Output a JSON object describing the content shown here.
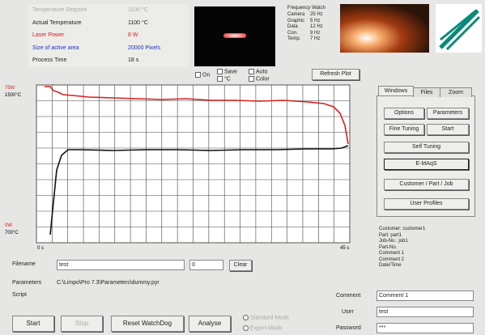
{
  "status": {
    "rows": [
      [
        "Temperature Setpoint",
        "1100 °C"
      ],
      [
        "Actual Temperature",
        "1100 °C"
      ],
      [
        "Laser Power",
        "8 W"
      ],
      [
        "Size of active area",
        "20000 Pixels"
      ],
      [
        "Process Time",
        "18 s"
      ]
    ]
  },
  "camera": {
    "checks": [
      "On",
      "Save",
      "°C",
      "Auto",
      "Color"
    ]
  },
  "frequency": {
    "title": "Frequency Watch",
    "rows": [
      [
        "Camera",
        "25 Hz"
      ],
      [
        "Graphic",
        "5 Hz"
      ],
      [
        "Data",
        "12 Hz"
      ],
      [
        "Con.",
        "9 Hz"
      ],
      [
        "Temp.",
        "7 Hz"
      ]
    ]
  },
  "refresh": "Refresh Plot",
  "plot": {
    "power_max": "75W",
    "temp_max": "1500°C",
    "power_min": "0W",
    "temp_min": "700°C",
    "time_start": "0 s",
    "time_end": "45 s"
  },
  "tabs": [
    "Windows",
    "Files",
    "Zoom"
  ],
  "buttons": {
    "options": "Options",
    "parameters": "Parameters",
    "fine_tuning": "Fine Tuning",
    "start_tuning": "Start",
    "self_tuning": "Self Tuning",
    "emaqs": "E-MAqS",
    "customer": "Customer / Part / Job",
    "profiles": "User Profiles"
  },
  "info": [
    "Customer: customer1",
    "Part: part1",
    "Job-No.: job1",
    "Part-No.",
    "Comment 1",
    "Comment 2",
    "Date/Time"
  ],
  "file": {
    "label": "Filename",
    "name": "test",
    "number": "0",
    "clear": "Clear"
  },
  "parameters": {
    "label": "Parameters",
    "path": "C:\\Limpo\\Pro 7.3\\Parameters\\dummy.pyr"
  },
  "script": "Script",
  "login": {
    "comment_label": "Comment",
    "comment": "Comment 1",
    "user_label": "User",
    "user": "test",
    "password_label": "Password",
    "password": "***"
  },
  "actions": {
    "start": "Start",
    "stop": "Stop",
    "reset": "Reset WatchDog",
    "analyse": "Analyse"
  },
  "modes": [
    "Standard Mode",
    "Expert Mode"
  ]
}
